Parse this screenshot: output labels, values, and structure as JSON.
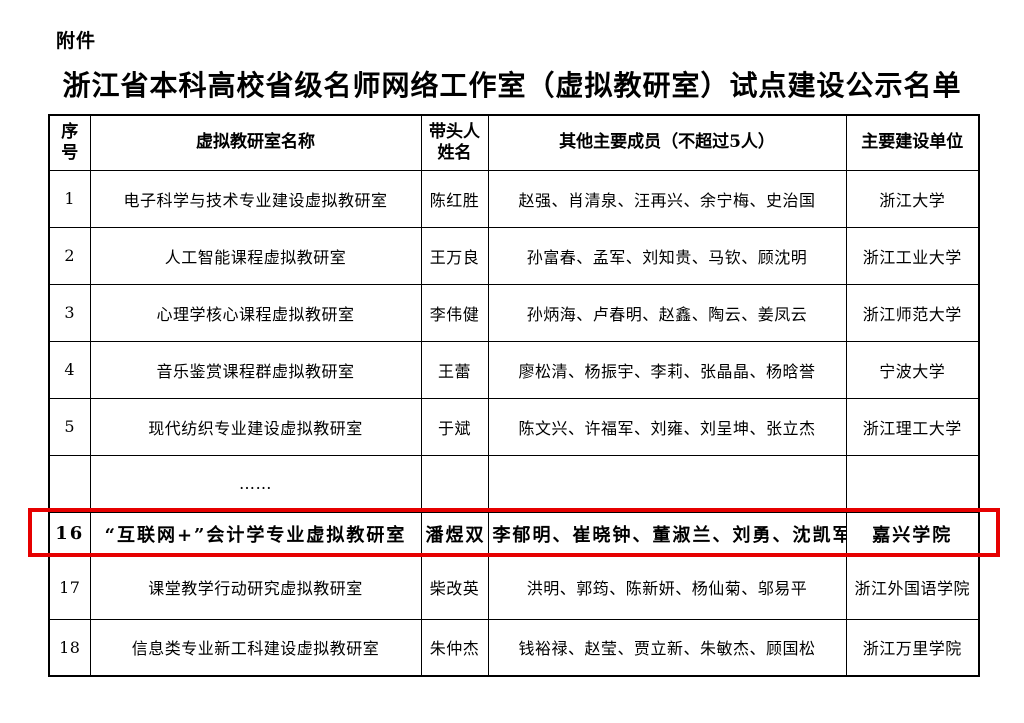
{
  "page": {
    "attachment_label": "附件",
    "title": "浙江省本科高校省级名师网络工作室（虚拟教研室）试点建设公示名单"
  },
  "table": {
    "headers": [
      "序\n号",
      "虚拟教研室名称",
      "带头人\n姓名",
      "其他主要成员（不超过5人）",
      "主要建设单位"
    ],
    "highlight_color": "#e60000",
    "rows": [
      {
        "no": "1",
        "name": "电子科学与技术专业建设虚拟教研室",
        "leader": "陈红胜",
        "members": "赵强、肖清泉、汪再兴、余宁梅、史治国",
        "unit": "浙江大学",
        "highlight": false
      },
      {
        "no": "2",
        "name": "人工智能课程虚拟教研室",
        "leader": "王万良",
        "members": "孙富春、孟军、刘知贵、马钦、顾沈明",
        "unit": "浙江工业大学",
        "highlight": false
      },
      {
        "no": "3",
        "name": "心理学核心课程虚拟教研室",
        "leader": "李伟健",
        "members": "孙炳海、卢春明、赵鑫、陶云、姜凤云",
        "unit": "浙江师范大学",
        "highlight": false
      },
      {
        "no": "4",
        "name": "音乐鉴赏课程群虚拟教研室",
        "leader": "王蕾",
        "members": "廖松清、杨振宇、李莉、张晶晶、杨晗誉",
        "unit": "宁波大学",
        "highlight": false
      },
      {
        "no": "5",
        "name": "现代纺织专业建设虚拟教研室",
        "leader": "于斌",
        "members": "陈文兴、许福军、刘雍、刘呈坤、张立杰",
        "unit": "浙江理工大学",
        "highlight": false
      },
      {
        "no": "",
        "name": "……",
        "leader": "",
        "members": "",
        "unit": "",
        "highlight": false
      },
      {
        "no": "16",
        "name": "“互联网+”会计学专业虚拟教研室",
        "leader": "潘煜双",
        "members": "李郁明、崔晓钟、董淑兰、刘勇、沈凯军",
        "unit": "嘉兴学院",
        "highlight": true
      },
      {
        "no": "17",
        "name": "课堂教学行动研究虚拟教研室",
        "leader": "柴改英",
        "members": "洪明、郭筠、陈新妍、杨仙菊、邬易平",
        "unit": "浙江外国语学院",
        "highlight": false
      },
      {
        "no": "18",
        "name": "信息类专业新工科建设虚拟教研室",
        "leader": "朱仲杰",
        "members": "钱裕禄、赵莹、贾立新、朱敏杰、顾国松",
        "unit": "浙江万里学院",
        "highlight": false
      }
    ]
  }
}
